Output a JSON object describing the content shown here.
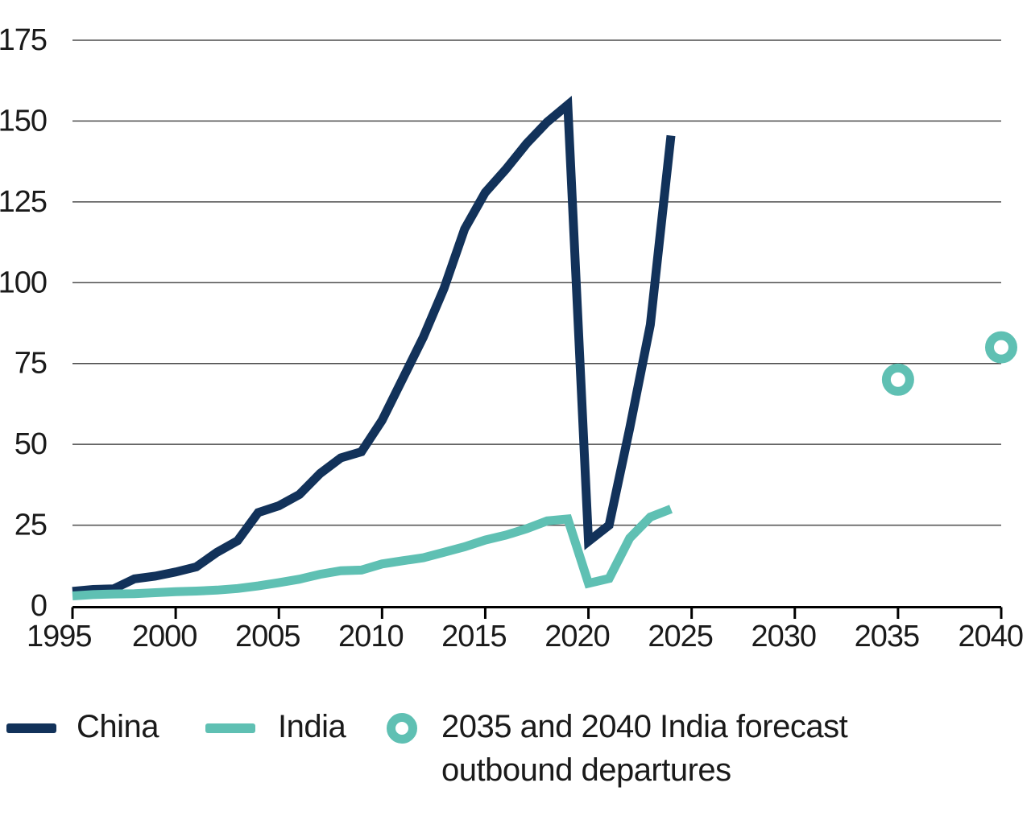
{
  "chart_data": {
    "type": "line",
    "title": "",
    "xlabel": "",
    "ylabel": "",
    "x": [
      1995,
      1996,
      1997,
      1998,
      1999,
      2000,
      2001,
      2002,
      2003,
      2004,
      2005,
      2006,
      2007,
      2008,
      2009,
      2010,
      2011,
      2012,
      2013,
      2014,
      2015,
      2016,
      2017,
      2018,
      2019,
      2020,
      2021,
      2022,
      2023,
      2024
    ],
    "series": [
      {
        "name": "China",
        "color": "#12325A",
        "values": [
          4.5,
          5.1,
          5.3,
          8.4,
          9.2,
          10.5,
          12.1,
          16.6,
          20.2,
          28.9,
          31,
          34.5,
          41,
          45.8,
          47.7,
          57.4,
          70.3,
          83.2,
          98.2,
          116.6,
          127.9,
          135.1,
          143,
          149.7,
          155,
          20,
          25,
          55,
          87,
          145.5
        ]
      },
      {
        "name": "India",
        "color": "#5FC0B3",
        "values": [
          3.1,
          3.5,
          3.7,
          3.8,
          4.1,
          4.4,
          4.6,
          4.9,
          5.4,
          6.2,
          7.2,
          8.3,
          9.8,
          10.9,
          11.1,
          13,
          14,
          14.9,
          16.6,
          18.3,
          20.4,
          21.9,
          23.9,
          26.3,
          26.9,
          7,
          8.5,
          21,
          27.5,
          30
        ]
      }
    ],
    "forecast_points": [
      {
        "series": "India",
        "x": 2035,
        "value": 70
      },
      {
        "series": "India",
        "x": 2040,
        "value": 80
      }
    ],
    "x_ticks": [
      "1995",
      "2000",
      "2005",
      "2010",
      "2015",
      "2020",
      "2025",
      "2030",
      "2035",
      "2040"
    ],
    "y_ticks": [
      "0",
      "25",
      "50",
      "75",
      "100",
      "125",
      "150",
      "175"
    ],
    "xlim": [
      1995,
      2040
    ],
    "ylim": [
      0,
      175
    ],
    "grid": true,
    "legend_position": "bottom"
  },
  "legend": {
    "items": [
      {
        "label": "China",
        "marker": "line",
        "color": "#12325A"
      },
      {
        "label": "India",
        "marker": "line",
        "color": "#5FC0B3"
      },
      {
        "label_line1": "2035 and 2040 India forecast",
        "label_line2": "outbound departures",
        "marker": "ring",
        "color": "#5FC0B3"
      }
    ]
  },
  "colors": {
    "china": "#12325A",
    "india": "#5FC0B3",
    "gridline": "#4D4D4D",
    "axis": "#000000",
    "text": "#1A1A1A",
    "background": "#FFFFFF"
  }
}
